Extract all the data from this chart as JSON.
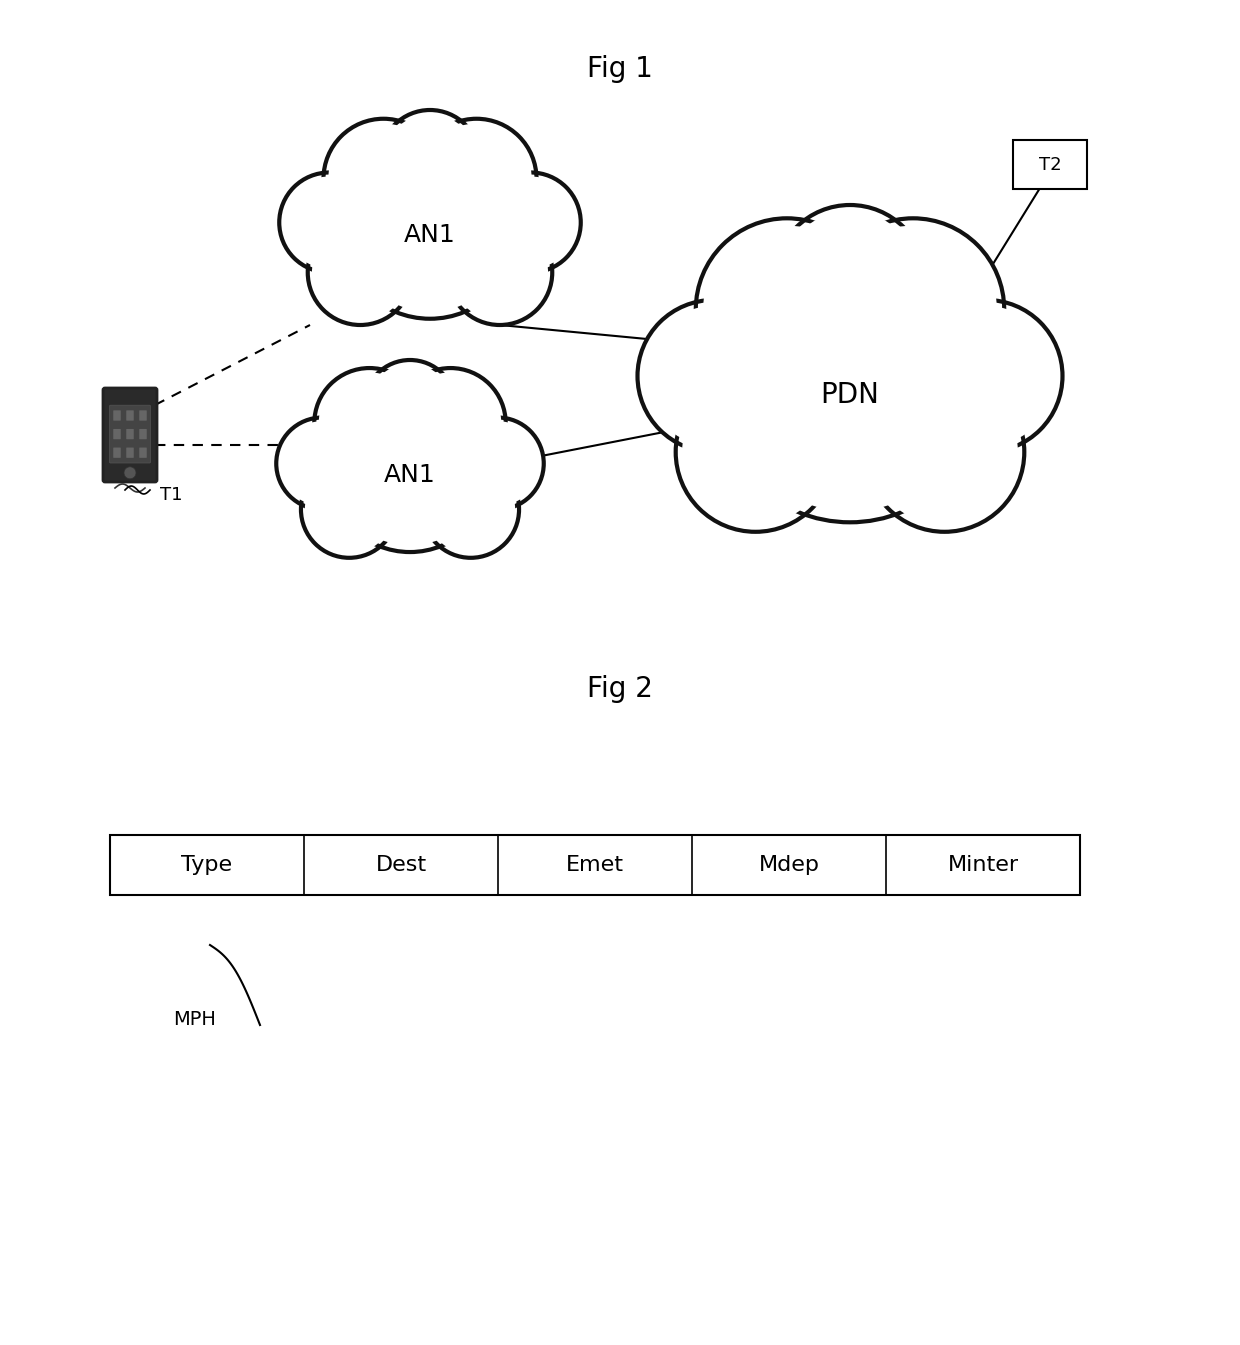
{
  "fig1_title": "Fig 1",
  "fig2_title": "Fig 2",
  "background_color": "#ffffff",
  "cloud_edge_color": "#111111",
  "cloud_lw": 3.0,
  "an1_top_label": "AN1",
  "an1_bot_label": "AN1",
  "pdn_label": "PDN",
  "t1_label": "T1",
  "t2_label": "T2",
  "table_fields": [
    "Type",
    "Dest",
    "Emet",
    "Mdep",
    "Minter"
  ],
  "mph_label": "MPH",
  "font_size_fig": 20,
  "font_size_label": 18,
  "font_size_table": 16
}
